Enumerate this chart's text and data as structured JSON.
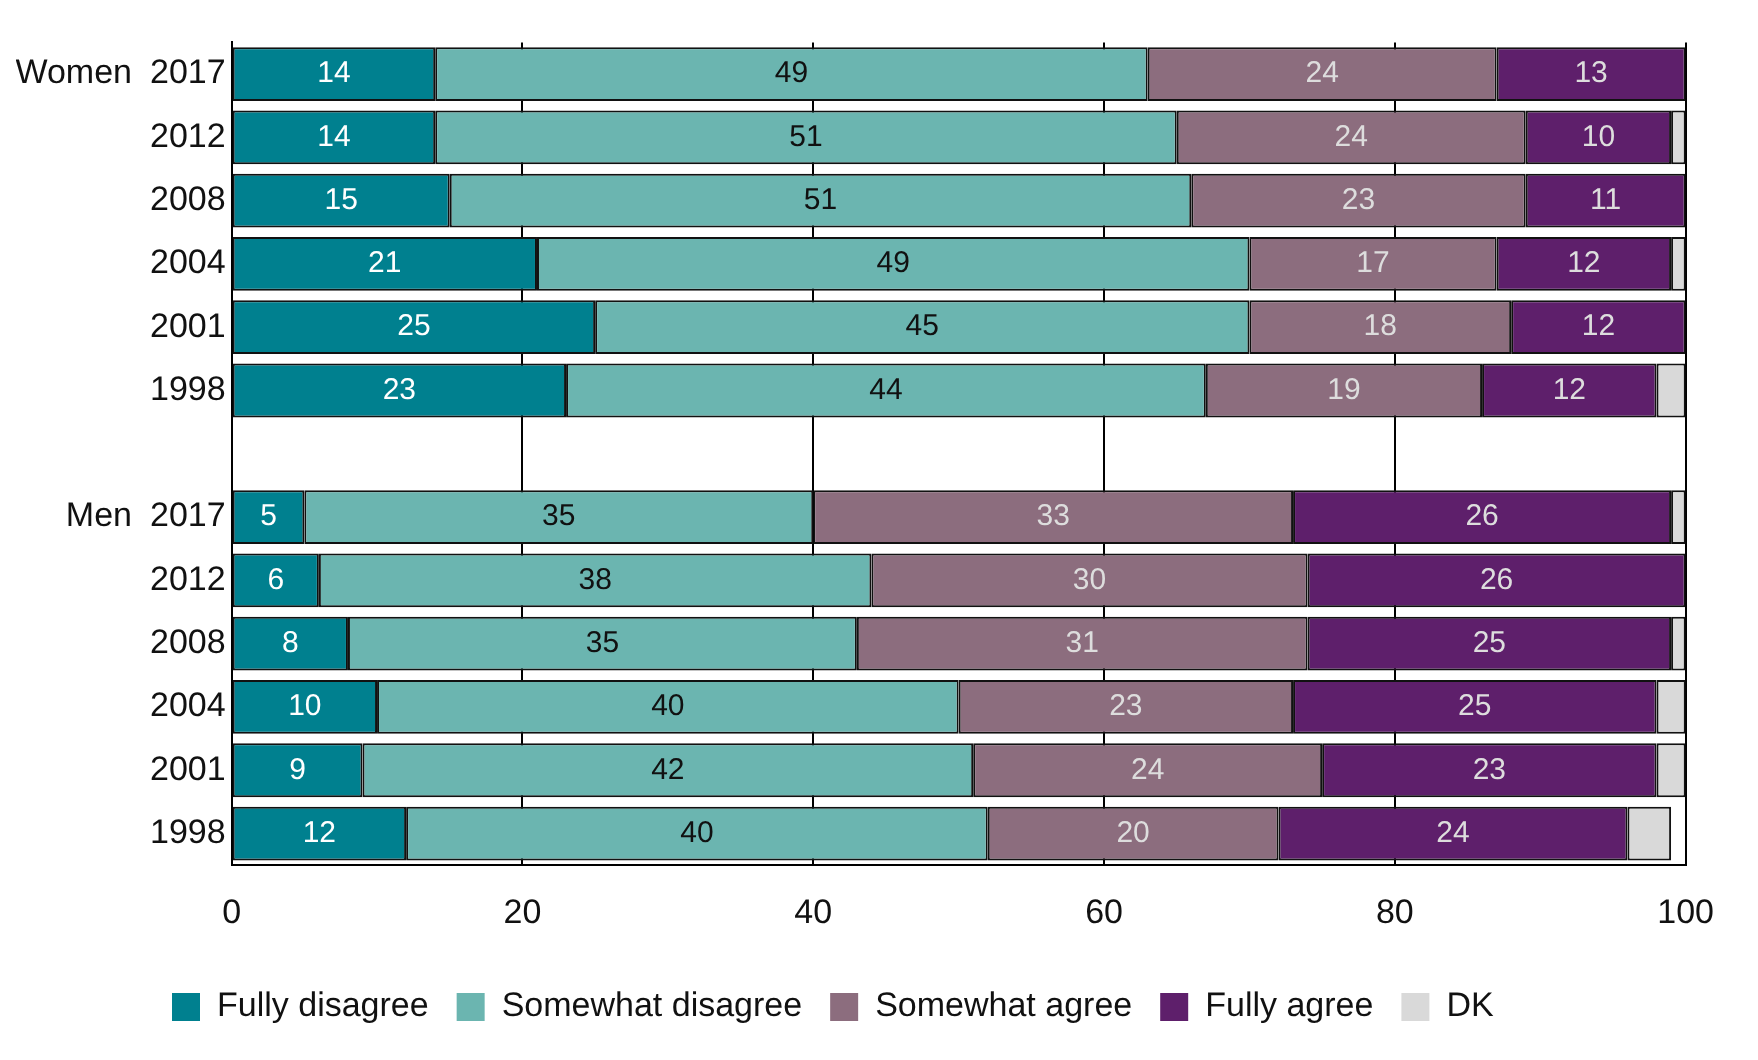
{
  "chart_data": {
    "type": "bar",
    "orientation": "horizontal",
    "stacked": true,
    "categories": [
      "2017",
      "2012",
      "2008",
      "2004",
      "2001",
      "1998",
      null,
      "2017",
      "2012",
      "2008",
      "2004",
      "2001",
      "1998"
    ],
    "series": [
      {
        "name": "Fully disagree",
        "color": "#00808f",
        "values": [
          14,
          14,
          15,
          21,
          25,
          23,
          null,
          5,
          6,
          8,
          10,
          9,
          12
        ]
      },
      {
        "name": "Somewhat disagree",
        "color": "#6bb5b0",
        "values": [
          49,
          51,
          51,
          49,
          45,
          44,
          null,
          35,
          38,
          35,
          40,
          42,
          40
        ]
      },
      {
        "name": "Somewhat agree",
        "color": "#8c6d7e",
        "values": [
          24,
          24,
          23,
          17,
          18,
          19,
          null,
          33,
          30,
          31,
          23,
          24,
          20
        ]
      },
      {
        "name": "Fully agree",
        "color": "#5e1f6b",
        "values": [
          13,
          10,
          11,
          12,
          12,
          12,
          null,
          26,
          26,
          25,
          25,
          23,
          24
        ]
      },
      {
        "name": "DK",
        "color": "#d9d9d9",
        "values": [
          0,
          1,
          0,
          1,
          0,
          2,
          null,
          1,
          0,
          1,
          2,
          2,
          3
        ],
        "value_labels": [
          null,
          null,
          null,
          null,
          null,
          null,
          null,
          null,
          null,
          null,
          null,
          null,
          null
        ]
      }
    ],
    "data_labels": true,
    "annotations": [
      "Women",
      "Men"
    ],
    "xlim": [
      0,
      100
    ],
    "xticks": [
      0,
      20,
      40,
      60,
      80,
      100
    ],
    "grid": "x",
    "legend": "bottom"
  }
}
